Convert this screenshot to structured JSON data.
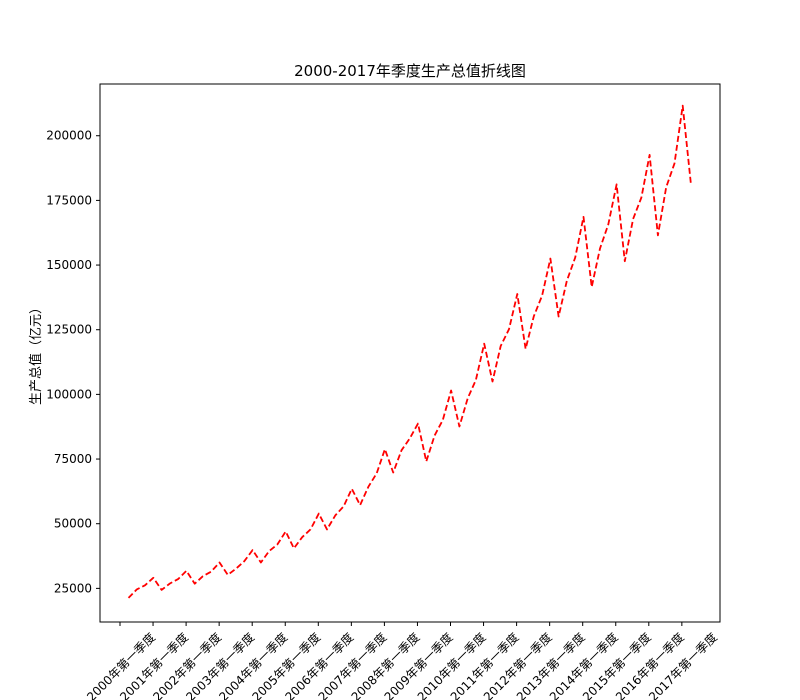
{
  "chart_data": {
    "type": "line",
    "title": "2000-2017年季度生产总值折线图",
    "xlabel": "",
    "ylabel": "生产总值（亿元）",
    "x_tick_labels": [
      "2000年第一季度",
      "2001年第一季度",
      "2002年第一季度",
      "2003年第一季度",
      "2004年第一季度",
      "2005年第一季度",
      "2006年第一季度",
      "2007年第一季度",
      "2008年第一季度",
      "2009年第一季度",
      "2010年第一季度",
      "2011年第一季度",
      "2012年第一季度",
      "2013年第一季度",
      "2014年第一季度",
      "2015年第一季度",
      "2016年第一季度",
      "2017年第一季度"
    ],
    "y_ticks": [
      25000,
      50000,
      75000,
      100000,
      125000,
      150000,
      175000,
      200000
    ],
    "ylim": [
      12000,
      220000
    ],
    "grid": false,
    "line_style": "dashed",
    "line_color": "#ff0000",
    "series": [
      {
        "values": [
          21300,
          24600,
          26200,
          29100,
          24400,
          26900,
          28600,
          31800,
          26800,
          29700,
          31500,
          35000,
          30200,
          32600,
          35500,
          39800,
          35000,
          39400,
          42000,
          47000,
          40500,
          44800,
          47800,
          53900,
          47800,
          53200,
          56700,
          63500,
          57200,
          64300,
          69500,
          78800,
          69800,
          78400,
          83000,
          88700,
          74100,
          84100,
          90100,
          101500,
          87600,
          98500,
          105600,
          119600,
          105000,
          118700,
          125200,
          138800,
          117600,
          130200,
          138200,
          152500,
          130100,
          144000,
          152900,
          168600,
          141500,
          156400,
          165700,
          181200,
          151500,
          167800,
          176100,
          192600,
          161500,
          180100,
          189300,
          211600,
          181000
        ]
      }
    ]
  }
}
